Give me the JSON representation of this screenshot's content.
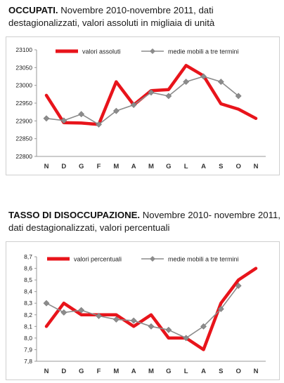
{
  "chart_data": [
    {
      "type": "line",
      "title_bold": "OCCUPATI.",
      "title_rest": " Novembre 2010-novembre 2011, dati destagionalizzati, valori assoluti in migliaia di unità",
      "categories": [
        "N",
        "D",
        "G",
        "F",
        "M",
        "A",
        "M",
        "G",
        "L",
        "A",
        "S",
        "O",
        "N"
      ],
      "ylim": [
        22800,
        23100
      ],
      "yticks": [
        "22800",
        "22850",
        "22900",
        "22950",
        "23000",
        "23050",
        "23100"
      ],
      "legend_position": "top",
      "series": [
        {
          "name": "valori assoluti",
          "color": "#e8141b",
          "values": [
            22972,
            22895,
            22894,
            22890,
            23010,
            22945,
            22985,
            22988,
            23056,
            23027,
            22948,
            22933,
            22907
          ]
        },
        {
          "name": "medie mobili a tre termini",
          "color": "#8c8c8c",
          "values": [
            22907,
            22901,
            22919,
            22890,
            22928,
            22945,
            22980,
            22970,
            23010,
            23025,
            23010,
            22970,
            null
          ]
        }
      ]
    },
    {
      "type": "line",
      "title_bold": "TASSO DI DISOCCUPAZIONE.",
      "title_rest": " Novembre 2010- novembre 2011, dati destagionalizzati, valori percentuali",
      "categories": [
        "N",
        "D",
        "G",
        "F",
        "M",
        "A",
        "M",
        "G",
        "L",
        "A",
        "S",
        "O",
        "N"
      ],
      "ylim": [
        7.8,
        8.7
      ],
      "yticks": [
        "7,8",
        "7,9",
        "8,0",
        "8,1",
        "8,2",
        "8,3",
        "8,4",
        "8,5",
        "8,6",
        "8,7"
      ],
      "legend_position": "top",
      "series": [
        {
          "name": "valori percentuali",
          "color": "#e8141b",
          "values": [
            8.1,
            8.3,
            8.2,
            8.2,
            8.2,
            8.1,
            8.2,
            8.0,
            8.0,
            7.9,
            8.3,
            8.5,
            8.6
          ]
        },
        {
          "name": "medie mobili a tre termini",
          "color": "#8c8c8c",
          "values": [
            8.3,
            8.22,
            8.24,
            8.19,
            8.16,
            8.15,
            8.1,
            8.07,
            8.0,
            8.1,
            8.25,
            8.45,
            null
          ]
        }
      ]
    }
  ]
}
